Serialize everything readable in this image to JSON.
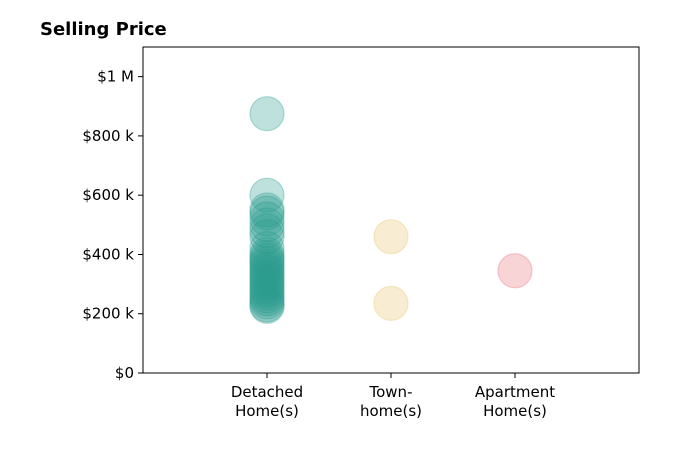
{
  "chart_data": {
    "type": "scatter",
    "title": "Selling Price",
    "xlabel": "",
    "ylabel": "",
    "categories": [
      [
        "Detached",
        "Home(s)"
      ],
      [
        "Town-",
        "home(s)"
      ],
      [
        "Apartment",
        "Home(s)"
      ]
    ],
    "xlim": [
      0,
      4
    ],
    "ylim": [
      0,
      1100000
    ],
    "yticks": [
      {
        "value": 0,
        "label": "$0"
      },
      {
        "value": 200000,
        "label": "$200 k"
      },
      {
        "value": 400000,
        "label": "$400 k"
      },
      {
        "value": 600000,
        "label": "$600 k"
      },
      {
        "value": 800000,
        "label": "$800 k"
      },
      {
        "value": 1000000,
        "label": "$1 M"
      }
    ],
    "grid": false,
    "series": [
      {
        "category_index": 0,
        "color": "#2a9d8f",
        "values": [
          875000,
          600000,
          550000,
          540000,
          520000,
          500000,
          480000,
          460000,
          420000,
          400000,
          390000,
          380000,
          370000,
          360000,
          350000,
          340000,
          330000,
          320000,
          310000,
          300000,
          290000,
          280000,
          270000,
          260000,
          250000,
          240000,
          230000,
          225000
        ]
      },
      {
        "category_index": 1,
        "color": "#e9c46a",
        "values": [
          460000,
          235000
        ]
      },
      {
        "category_index": 2,
        "color": "#e76f7a",
        "values": [
          345000
        ]
      }
    ]
  }
}
